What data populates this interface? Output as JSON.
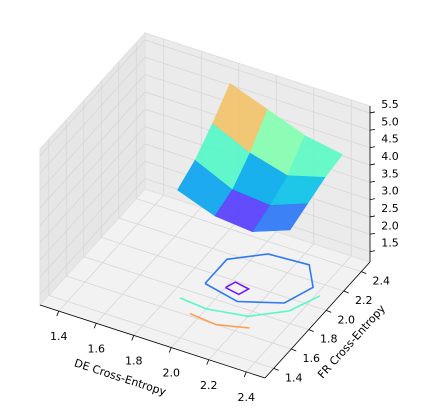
{
  "chart_data": {
    "type": "surface3d",
    "xlabel": "DE Cross-Entropy",
    "ylabel": "FR Cross-Entropy",
    "xlim": [
      1.3,
      2.5
    ],
    "ylim": [
      1.3,
      2.5
    ],
    "zlim": [
      1.2,
      5.7
    ],
    "xticks": [
      1.4,
      1.6,
      1.8,
      {
        "value": 2,
        "label": "2.0"
      },
      2.2,
      2.4
    ],
    "yticks": [
      1.4,
      1.6,
      1.8,
      {
        "value": 2,
        "label": "2.0"
      },
      2.2,
      2.4
    ],
    "zticks": [
      1.5,
      {
        "value": 2,
        "label": "2.0"
      },
      2.5,
      {
        "value": 3,
        "label": "3.0"
      },
      3.5,
      {
        "value": 4,
        "label": "4.0"
      },
      4.5,
      {
        "value": 5,
        "label": "5.0"
      },
      5.5
    ],
    "colormap": "rainbow",
    "x": [
      1.8,
      2.0,
      2.2,
      2.4
    ],
    "y": [
      1.8,
      2.0,
      2.2,
      2.4
    ],
    "z": [
      [
        4.0,
        3.6,
        3.5,
        3.9
      ],
      [
        4.3,
        3.8,
        3.7,
        4.1
      ],
      [
        4.8,
        4.3,
        4.0,
        4.3
      ],
      [
        5.4,
        5.0,
        4.6,
        4.4
      ]
    ],
    "contours": [
      {
        "level": 3.8,
        "x": [
          1.9,
          2.1,
          2.3,
          2.36,
          2.26,
          2.05,
          1.9,
          1.9
        ],
        "y": [
          1.9,
          1.84,
          1.95,
          2.15,
          2.32,
          2.3,
          2.15,
          1.9
        ]
      },
      {
        "level": 3.55,
        "x": [
          2.0,
          2.08,
          2.1,
          2.02,
          2.0
        ],
        "y": [
          1.92,
          1.9,
          1.97,
          1.99,
          1.92
        ]
      },
      {
        "level": 4.3,
        "x": [
          1.85,
          2.0,
          2.2,
          2.35,
          2.42
        ],
        "y": [
          1.72,
          1.7,
          1.75,
          1.9,
          2.1
        ]
      },
      {
        "level": 5.0,
        "x": [
          1.95,
          2.1,
          2.25
        ],
        "y": [
          1.62,
          1.6,
          1.66
        ]
      }
    ]
  }
}
